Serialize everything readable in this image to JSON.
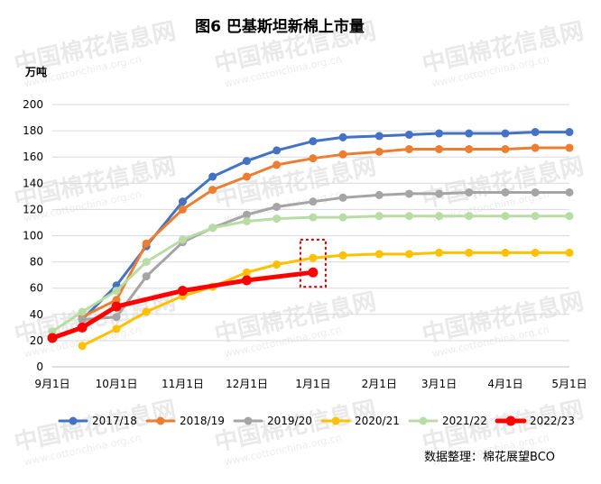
{
  "chart_data": {
    "type": "line",
    "title": "图6 巴基斯坦新棉上市量",
    "ylabel": "万吨",
    "ylim": [
      0,
      200
    ],
    "y_ticks": [
      "0",
      "20",
      "40",
      "60",
      "80",
      "100",
      "120",
      "140",
      "160",
      "180",
      "200"
    ],
    "x_ticks": [
      "9月1日",
      "10月1日",
      "11月1日",
      "12月1日",
      "1月1日",
      "2月1日",
      "3月1日",
      "4月1日",
      "5月1日"
    ],
    "xlim": [
      "2022-09-01",
      "2023-05-01"
    ],
    "grid": "horizontal",
    "legend_position": "bottom",
    "series": [
      {
        "name": "2017/18",
        "color": "#4472C4",
        "points": [
          [
            "2022-09-15",
            36
          ],
          [
            "2022-10-01",
            62
          ],
          [
            "2022-10-15",
            92
          ],
          [
            "2022-11-01",
            126
          ],
          [
            "2022-11-15",
            145
          ],
          [
            "2022-12-01",
            157
          ],
          [
            "2022-12-15",
            165
          ],
          [
            "2023-01-01",
            172
          ],
          [
            "2023-01-15",
            175
          ],
          [
            "2023-02-01",
            176
          ],
          [
            "2023-02-15",
            177
          ],
          [
            "2023-03-01",
            178
          ],
          [
            "2023-03-15",
            178
          ],
          [
            "2023-04-01",
            178
          ],
          [
            "2023-04-15",
            179
          ],
          [
            "2023-05-01",
            179
          ]
        ]
      },
      {
        "name": "2018/19",
        "color": "#ED7D31",
        "points": [
          [
            "2022-09-15",
            38
          ],
          [
            "2022-10-01",
            51
          ],
          [
            "2022-10-15",
            94
          ],
          [
            "2022-11-01",
            120
          ],
          [
            "2022-11-15",
            135
          ],
          [
            "2022-12-01",
            145
          ],
          [
            "2022-12-15",
            154
          ],
          [
            "2023-01-01",
            159
          ],
          [
            "2023-01-15",
            162
          ],
          [
            "2023-02-01",
            164
          ],
          [
            "2023-02-15",
            166
          ],
          [
            "2023-03-01",
            166
          ],
          [
            "2023-03-15",
            166
          ],
          [
            "2023-04-01",
            166
          ],
          [
            "2023-04-15",
            167
          ],
          [
            "2023-05-01",
            167
          ]
        ]
      },
      {
        "name": "2019/20",
        "color": "#A5A5A5",
        "points": [
          [
            "2022-09-15",
            36
          ],
          [
            "2022-10-01",
            38
          ],
          [
            "2022-10-15",
            69
          ],
          [
            "2022-11-01",
            95
          ],
          [
            "2022-11-15",
            106
          ],
          [
            "2022-12-01",
            116
          ],
          [
            "2022-12-15",
            122
          ],
          [
            "2023-01-01",
            126
          ],
          [
            "2023-01-15",
            129
          ],
          [
            "2023-02-01",
            131
          ],
          [
            "2023-02-15",
            132
          ],
          [
            "2023-03-01",
            132
          ],
          [
            "2023-03-15",
            133
          ],
          [
            "2023-04-01",
            133
          ],
          [
            "2023-04-15",
            133
          ],
          [
            "2023-05-01",
            133
          ]
        ]
      },
      {
        "name": "2020/21",
        "color": "#FFC000",
        "points": [
          [
            "2022-09-15",
            16
          ],
          [
            "2022-10-01",
            29
          ],
          [
            "2022-10-15",
            42
          ],
          [
            "2022-11-01",
            54
          ],
          [
            "2022-11-15",
            61
          ],
          [
            "2022-12-01",
            72
          ],
          [
            "2022-12-15",
            78
          ],
          [
            "2023-01-01",
            83
          ],
          [
            "2023-01-15",
            85
          ],
          [
            "2023-02-01",
            86
          ],
          [
            "2023-02-15",
            86
          ],
          [
            "2023-03-01",
            87
          ],
          [
            "2023-03-15",
            87
          ],
          [
            "2023-04-01",
            87
          ],
          [
            "2023-04-15",
            87
          ],
          [
            "2023-05-01",
            87
          ]
        ]
      },
      {
        "name": "2021/22",
        "color": "#B8DDA4",
        "points": [
          [
            "2022-09-01",
            27
          ],
          [
            "2022-09-15",
            42
          ],
          [
            "2022-10-01",
            58
          ],
          [
            "2022-10-15",
            80
          ],
          [
            "2022-11-01",
            97
          ],
          [
            "2022-11-15",
            106
          ],
          [
            "2022-12-01",
            111
          ],
          [
            "2022-12-15",
            113
          ],
          [
            "2023-01-01",
            114
          ],
          [
            "2023-01-15",
            114
          ],
          [
            "2023-02-01",
            115
          ],
          [
            "2023-02-15",
            115
          ],
          [
            "2023-03-01",
            115
          ],
          [
            "2023-03-15",
            115
          ],
          [
            "2023-04-01",
            115
          ],
          [
            "2023-04-15",
            115
          ],
          [
            "2023-05-01",
            115
          ]
        ]
      },
      {
        "name": "2022/23",
        "color": "#FF0000",
        "points": [
          [
            "2022-09-01",
            22
          ],
          [
            "2022-09-15",
            30
          ],
          [
            "2022-10-01",
            46
          ],
          [
            "2022-11-01",
            58
          ],
          [
            "2022-12-01",
            66
          ],
          [
            "2023-01-01",
            72
          ]
        ]
      }
    ],
    "source": "数据整理：棉花展望BCO",
    "watermark": "中国棉花信息网 www.cottonchina.org.cn",
    "highlight_marker": "dotted box around the 1月1日 values",
    "highlight_color": "#C00000"
  }
}
